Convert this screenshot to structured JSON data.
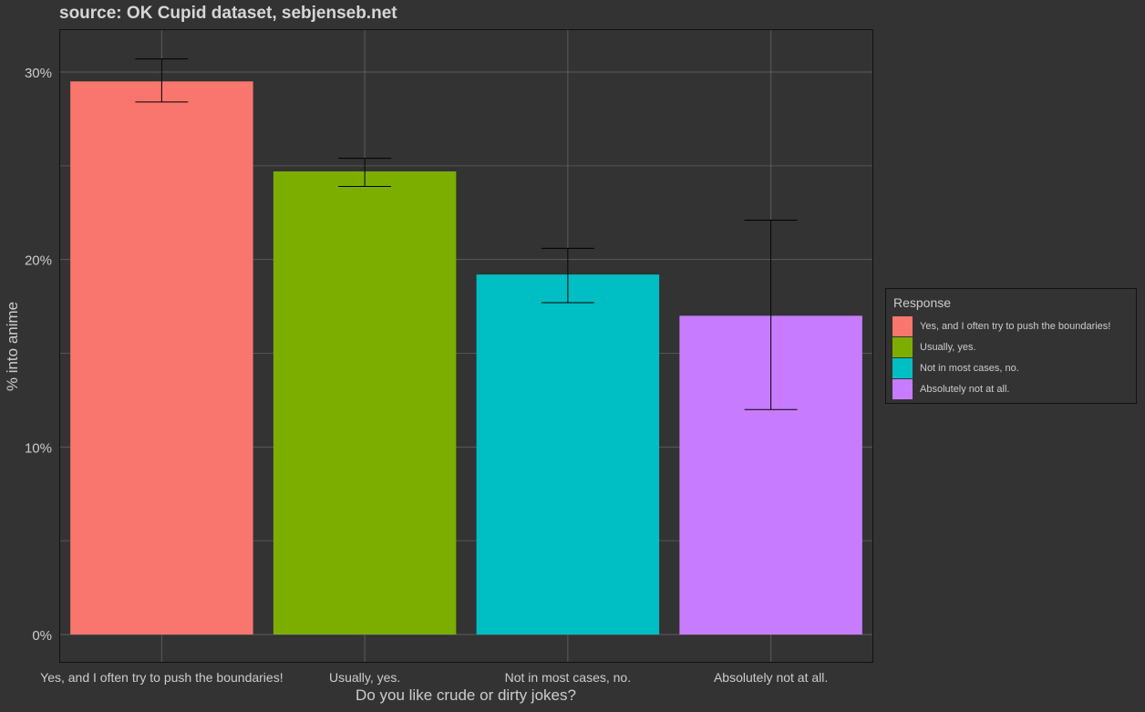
{
  "chart_data": {
    "type": "bar",
    "title": "source: OK Cupid dataset, sebjenseb.net",
    "xlabel": "Do you like crude or dirty jokes?",
    "ylabel": "% into anime",
    "ylim": [
      0,
      0.32
    ],
    "yticks": [
      {
        "value": 0.0,
        "label": "0%"
      },
      {
        "value": 0.1,
        "label": "10%"
      },
      {
        "value": 0.2,
        "label": "20%"
      },
      {
        "value": 0.3,
        "label": "30%"
      }
    ],
    "categories": [
      "Yes, and I often try to push the boundaries!",
      "Usually, yes.",
      "Not in most cases, no.",
      "Absolutely not at all."
    ],
    "values": [
      0.295,
      0.247,
      0.192,
      0.17
    ],
    "error_low": [
      0.284,
      0.239,
      0.177,
      0.12
    ],
    "error_high": [
      0.307,
      0.254,
      0.206,
      0.221
    ],
    "colors": [
      "#f8766d",
      "#7cae00",
      "#00bfc4",
      "#c77cff"
    ],
    "grid": true,
    "legend": {
      "title": "Response",
      "position": "right",
      "items": [
        "Yes, and I often try to push the boundaries!",
        "Usually, yes.",
        "Not in most cases, no.",
        "Absolutely not at all."
      ]
    }
  }
}
